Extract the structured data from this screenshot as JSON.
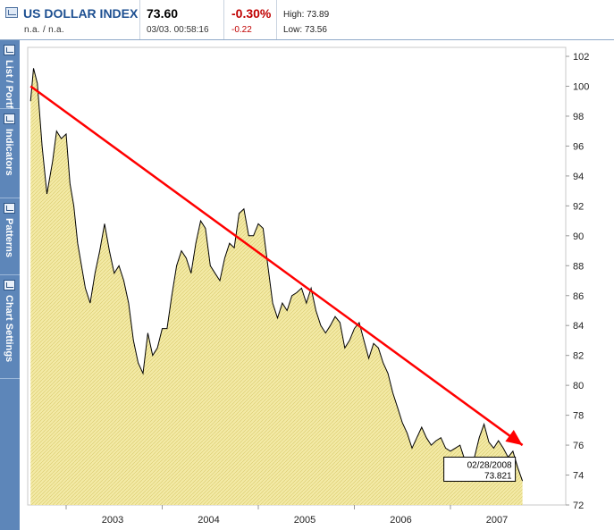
{
  "header": {
    "title": "US DOLLAR INDEX",
    "subtitle": "n.a.  /  n.a.",
    "price": "73.60",
    "datetime": "03/03. 00:58:16",
    "change_pct": "-0.30%",
    "change_abs": "-0.22",
    "high": "High: 73.89",
    "low": "Low: 73.56"
  },
  "sidebar": {
    "tabs": [
      {
        "label": "List / Portfolio",
        "icon": "list-icon"
      },
      {
        "label": "Indicators",
        "icon": "indicators-icon"
      },
      {
        "label": "Patterns",
        "icon": "patterns-icon"
      },
      {
        "label": "Chart Settings",
        "icon": "settings-icon"
      }
    ]
  },
  "colors": {
    "fill": "#f3eaa6",
    "price_line": "#000000",
    "trendline": "#ff0000",
    "accent": "#1d4f91",
    "negative": "#c00000"
  },
  "chart_data": {
    "type": "area",
    "x_unit": "year",
    "x_tick_labels": [
      "2003",
      "2004",
      "2005",
      "2006",
      "2007"
    ],
    "x_ticks": [
      2003.0,
      2004.0,
      2005.0,
      2006.0,
      2007.0
    ],
    "xlim": [
      2002.6,
      2008.2
    ],
    "y_ticks": [
      72,
      74,
      76,
      78,
      80,
      82,
      84,
      86,
      88,
      90,
      92,
      94,
      96,
      98,
      100,
      102
    ],
    "ylim": [
      72,
      102.6
    ],
    "grid": false,
    "x": [
      2002.63,
      2002.66,
      2002.7,
      2002.75,
      2002.8,
      2002.86,
      2002.9,
      2002.95,
      2003.0,
      2003.04,
      2003.08,
      2003.12,
      2003.16,
      2003.2,
      2003.25,
      2003.3,
      2003.35,
      2003.4,
      2003.45,
      2003.5,
      2003.55,
      2003.6,
      2003.65,
      2003.7,
      2003.75,
      2003.8,
      2003.85,
      2003.9,
      2003.95,
      2004.0,
      2004.05,
      2004.1,
      2004.15,
      2004.2,
      2004.25,
      2004.3,
      2004.35,
      2004.4,
      2004.45,
      2004.5,
      2004.55,
      2004.6,
      2004.65,
      2004.7,
      2004.75,
      2004.8,
      2004.85,
      2004.9,
      2004.95,
      2005.0,
      2005.05,
      2005.1,
      2005.15,
      2005.2,
      2005.25,
      2005.3,
      2005.35,
      2005.4,
      2005.45,
      2005.5,
      2005.55,
      2005.6,
      2005.65,
      2005.7,
      2005.75,
      2005.8,
      2005.85,
      2005.9,
      2005.95,
      2006.0,
      2006.05,
      2006.1,
      2006.15,
      2006.2,
      2006.25,
      2006.3,
      2006.35,
      2006.4,
      2006.45,
      2006.5,
      2006.55,
      2006.6,
      2006.65,
      2006.7,
      2006.75,
      2006.8,
      2006.85,
      2006.9,
      2006.95,
      2007.0,
      2007.05,
      2007.1,
      2007.15,
      2007.2,
      2007.25,
      2007.3,
      2007.35,
      2007.4,
      2007.45,
      2007.5,
      2007.55,
      2007.6,
      2007.65,
      2007.7,
      2007.75
    ],
    "y": [
      99.0,
      101.2,
      100.2,
      96.0,
      92.8,
      95.0,
      97.0,
      96.5,
      96.8,
      93.5,
      92.0,
      89.5,
      88.0,
      86.5,
      85.5,
      87.5,
      89.0,
      90.8,
      89.0,
      87.5,
      88.0,
      87.0,
      85.5,
      83.0,
      81.5,
      80.8,
      83.5,
      82.0,
      82.5,
      83.8,
      83.8,
      86.0,
      88.0,
      89.0,
      88.5,
      87.5,
      89.5,
      91.0,
      90.5,
      88.0,
      87.5,
      87.0,
      88.5,
      89.5,
      89.2,
      91.5,
      91.8,
      90.0,
      90.0,
      90.8,
      90.5,
      88.0,
      85.5,
      84.5,
      85.5,
      85.0,
      86.0,
      86.2,
      86.5,
      85.5,
      86.5,
      85.0,
      84.0,
      83.5,
      84.0,
      84.6,
      84.2,
      82.5,
      83.0,
      83.8,
      84.2,
      83.0,
      81.8,
      82.8,
      82.5,
      81.5,
      80.8,
      79.5,
      78.5,
      77.5,
      76.8,
      75.8,
      76.5,
      77.2,
      76.5,
      76.0,
      76.3,
      76.5,
      75.8,
      75.6,
      75.8,
      76.0,
      75.0,
      74.8,
      75.2,
      76.5,
      77.4,
      76.2,
      75.8,
      76.3,
      75.8,
      75.2,
      75.6,
      74.5,
      73.6
    ],
    "trendline": {
      "x": [
        2002.63,
        2007.75
      ],
      "y": [
        100.0,
        76.0
      ]
    },
    "annotation": {
      "date": "02/28/2008",
      "value": "73.821"
    }
  }
}
